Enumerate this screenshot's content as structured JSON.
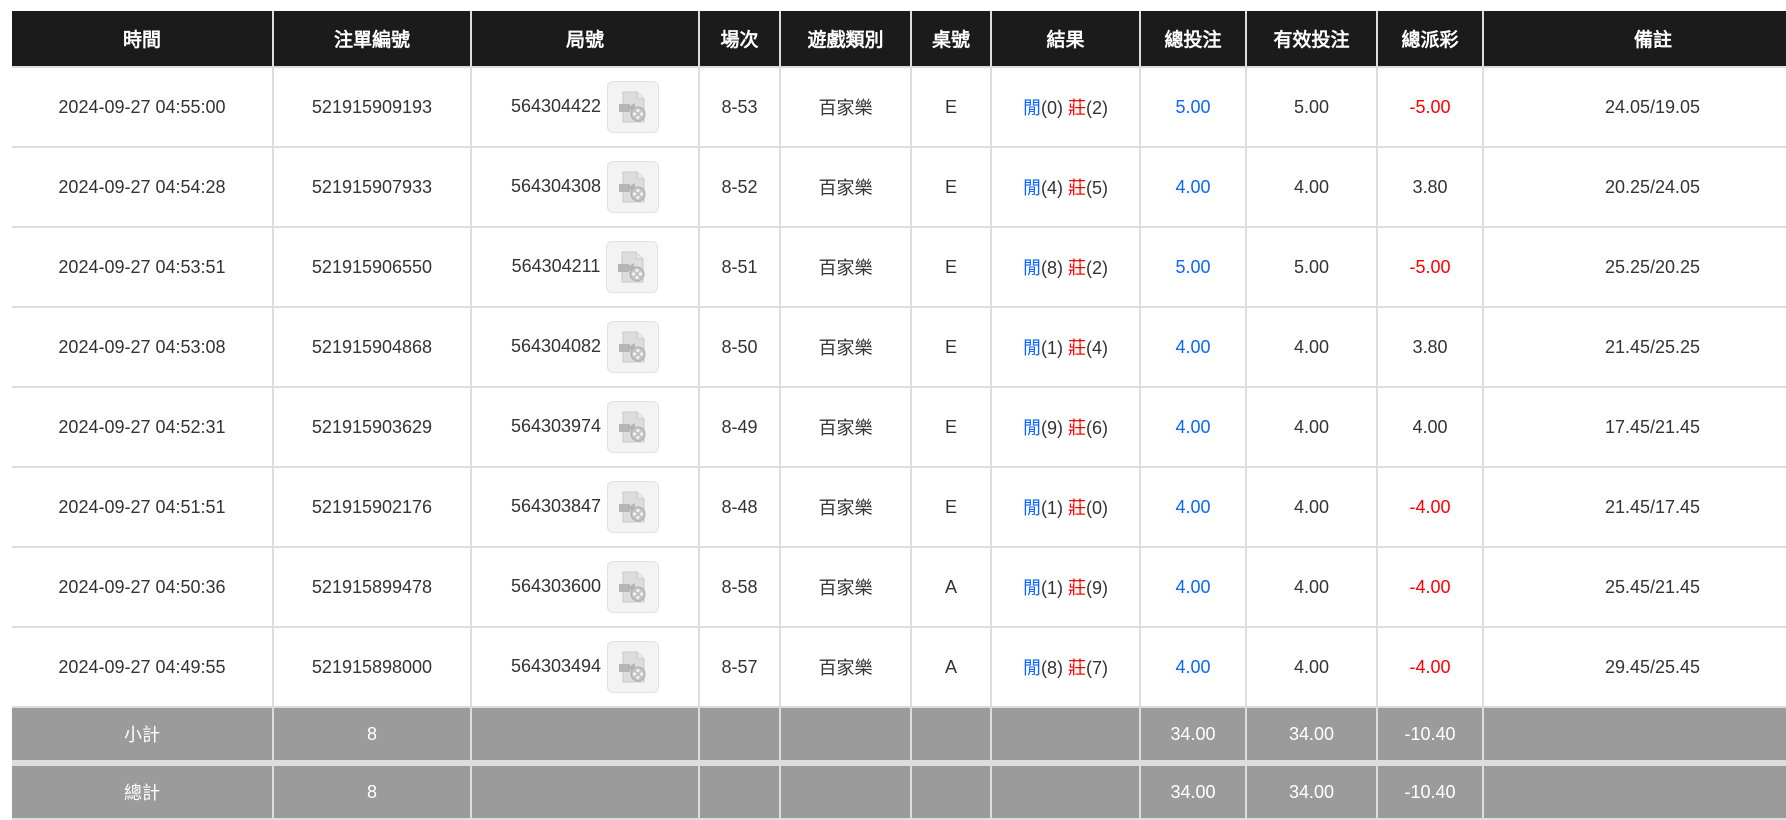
{
  "colors": {
    "header_bg": "#1b1b1b",
    "summary_bg": "#9b9b9b",
    "player": "#0a66ff",
    "banker": "#ff0000",
    "negative": "#ff0000",
    "total_bet": "#0a66ff"
  },
  "headers": [
    "時間",
    "注單編號",
    "局號",
    "場次",
    "遊戲類別",
    "桌號",
    "結果",
    "總投注",
    "有效投注",
    "總派彩",
    "備註"
  ],
  "rows": [
    {
      "time": "2024-09-27 04:55:00",
      "bet_no": "521915909193",
      "round": "564304422",
      "shoe": "8-53",
      "game": "百家樂",
      "table": "E",
      "p_label": "閒",
      "p": "(0)",
      "b_label": "莊",
      "b": "(2)",
      "bet": "5.00",
      "valid": "5.00",
      "payout": "-5.00",
      "neg": true,
      "note": "24.05/19.05",
      "icon": "video-replay-icon"
    },
    {
      "time": "2024-09-27 04:54:28",
      "bet_no": "521915907933",
      "round": "564304308",
      "shoe": "8-52",
      "game": "百家樂",
      "table": "E",
      "p_label": "閒",
      "p": "(4)",
      "b_label": "莊",
      "b": "(5)",
      "bet": "4.00",
      "valid": "4.00",
      "payout": "3.80",
      "neg": false,
      "note": "20.25/24.05",
      "icon": "video-replay-icon"
    },
    {
      "time": "2024-09-27 04:53:51",
      "bet_no": "521915906550",
      "round": "564304211",
      "shoe": "8-51",
      "game": "百家樂",
      "table": "E",
      "p_label": "閒",
      "p": "(8)",
      "b_label": "莊",
      "b": "(2)",
      "bet": "5.00",
      "valid": "5.00",
      "payout": "-5.00",
      "neg": true,
      "note": "25.25/20.25",
      "icon": "video-replay-icon"
    },
    {
      "time": "2024-09-27 04:53:08",
      "bet_no": "521915904868",
      "round": "564304082",
      "shoe": "8-50",
      "game": "百家樂",
      "table": "E",
      "p_label": "閒",
      "p": "(1)",
      "b_label": "莊",
      "b": "(4)",
      "bet": "4.00",
      "valid": "4.00",
      "payout": "3.80",
      "neg": false,
      "note": "21.45/25.25",
      "icon": "video-replay-icon"
    },
    {
      "time": "2024-09-27 04:52:31",
      "bet_no": "521915903629",
      "round": "564303974",
      "shoe": "8-49",
      "game": "百家樂",
      "table": "E",
      "p_label": "閒",
      "p": "(9)",
      "b_label": "莊",
      "b": "(6)",
      "bet": "4.00",
      "valid": "4.00",
      "payout": "4.00",
      "neg": false,
      "note": "17.45/21.45",
      "icon": "video-replay-icon"
    },
    {
      "time": "2024-09-27 04:51:51",
      "bet_no": "521915902176",
      "round": "564303847",
      "shoe": "8-48",
      "game": "百家樂",
      "table": "E",
      "p_label": "閒",
      "p": "(1)",
      "b_label": "莊",
      "b": "(0)",
      "bet": "4.00",
      "valid": "4.00",
      "payout": "-4.00",
      "neg": true,
      "note": "21.45/17.45",
      "icon": "video-replay-icon"
    },
    {
      "time": "2024-09-27 04:50:36",
      "bet_no": "521915899478",
      "round": "564303600",
      "shoe": "8-58",
      "game": "百家樂",
      "table": "A",
      "p_label": "閒",
      "p": "(1)",
      "b_label": "莊",
      "b": "(9)",
      "bet": "4.00",
      "valid": "4.00",
      "payout": "-4.00",
      "neg": true,
      "note": "25.45/21.45",
      "icon": "video-replay-icon"
    },
    {
      "time": "2024-09-27 04:49:55",
      "bet_no": "521915898000",
      "round": "564303494",
      "shoe": "8-57",
      "game": "百家樂",
      "table": "A",
      "p_label": "閒",
      "p": "(8)",
      "b_label": "莊",
      "b": "(7)",
      "bet": "4.00",
      "valid": "4.00",
      "payout": "-4.00",
      "neg": true,
      "note": "29.45/25.45",
      "icon": "video-replay-icon"
    }
  ],
  "subtotal": {
    "label": "小計",
    "count": "8",
    "bet": "34.00",
    "valid": "34.00",
    "payout": "-10.40"
  },
  "total": {
    "label": "總計",
    "count": "8",
    "bet": "34.00",
    "valid": "34.00",
    "payout": "-10.40"
  }
}
